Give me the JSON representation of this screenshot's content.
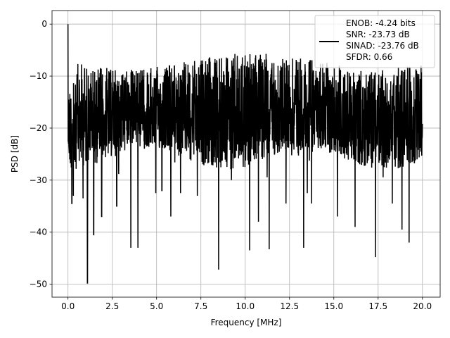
{
  "chart_data": {
    "type": "line",
    "title": "",
    "xlabel": "Frequency [MHz]",
    "ylabel": "PSD [dB]",
    "xlim": [
      -0.9,
      21.0
    ],
    "ylim": [
      -52.5,
      2.6
    ],
    "xticks": [
      0,
      2.5,
      5,
      7.5,
      10,
      12.5,
      15,
      17.5,
      20
    ],
    "xtick_labels": [
      "0.0",
      "2.5",
      "5.0",
      "7.5",
      "10.0",
      "12.5",
      "15.0",
      "17.5",
      "20.0"
    ],
    "yticks": [
      0,
      -10,
      -20,
      -30,
      -40,
      -50
    ],
    "ytick_labels": [
      "0",
      "−10",
      "−20",
      "−30",
      "−40",
      "−50"
    ],
    "grid": true,
    "legend_position": "top-right",
    "series": [
      {
        "name": "ENOB: -4.24 bits\nSNR: -23.73 dB\nSINAD: -23.76 dB\nSFDR: 0.66",
        "color": "#000000",
        "x_range": [
          0,
          20
        ],
        "points": 2048,
        "peak": [
          0.0,
          0.0
        ],
        "notable_dips": [
          [
            0.22,
            -34.5
          ],
          [
            0.3,
            -33.0
          ],
          [
            0.85,
            -33.5
          ],
          [
            1.1,
            -49.8
          ],
          [
            1.45,
            -40.5
          ],
          [
            1.9,
            -37.0
          ],
          [
            2.75,
            -35.0
          ],
          [
            3.55,
            -43.0
          ],
          [
            3.95,
            -43.0
          ],
          [
            4.95,
            -32.5
          ],
          [
            5.3,
            -32.0
          ],
          [
            5.8,
            -37.0
          ],
          [
            6.35,
            -32.5
          ],
          [
            7.3,
            -33.0
          ],
          [
            8.5,
            -47.2
          ],
          [
            10.25,
            -43.5
          ],
          [
            10.75,
            -38.0
          ],
          [
            11.35,
            -43.3
          ],
          [
            12.3,
            -34.5
          ],
          [
            13.3,
            -43.0
          ],
          [
            13.5,
            -32.5
          ],
          [
            13.75,
            -34.5
          ],
          [
            15.2,
            -37.0
          ],
          [
            16.2,
            -39.0
          ],
          [
            17.35,
            -44.8
          ],
          [
            18.3,
            -34.5
          ],
          [
            18.85,
            -39.5
          ],
          [
            19.25,
            -42.0
          ]
        ]
      }
    ]
  }
}
